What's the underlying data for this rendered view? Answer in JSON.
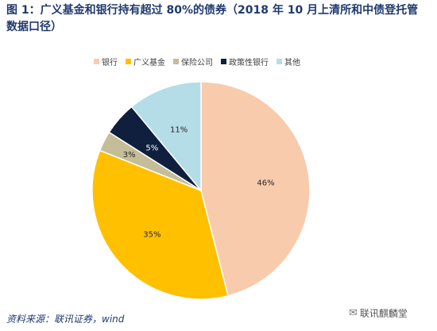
{
  "title": {
    "line1": "图 1：广义基金和银行持有超过 80%的债券（2018 年 10 月上清所和中债登托管",
    "line2": "数据口径）"
  },
  "chart_data": {
    "type": "pie",
    "title": "",
    "legend_position": "top",
    "slices": [
      {
        "name": "银行",
        "value": 46,
        "label": "46%",
        "color": "#f8cbad"
      },
      {
        "name": "广义基金",
        "value": 35,
        "label": "35%",
        "color": "#ffc000"
      },
      {
        "name": "保险公司",
        "value": 3,
        "label": "3%",
        "color": "#c4bd97"
      },
      {
        "name": "政策性银行",
        "value": 5,
        "label": "5%",
        "color": "#0f1f3d"
      },
      {
        "name": "其他",
        "value": 11,
        "label": "11%",
        "color": "#b4dde8"
      }
    ]
  },
  "footer": {
    "source": "资料来源：联讯证券，wind"
  },
  "watermark": {
    "icon": "wechat-icon",
    "text": "联讯麒麟堂"
  }
}
